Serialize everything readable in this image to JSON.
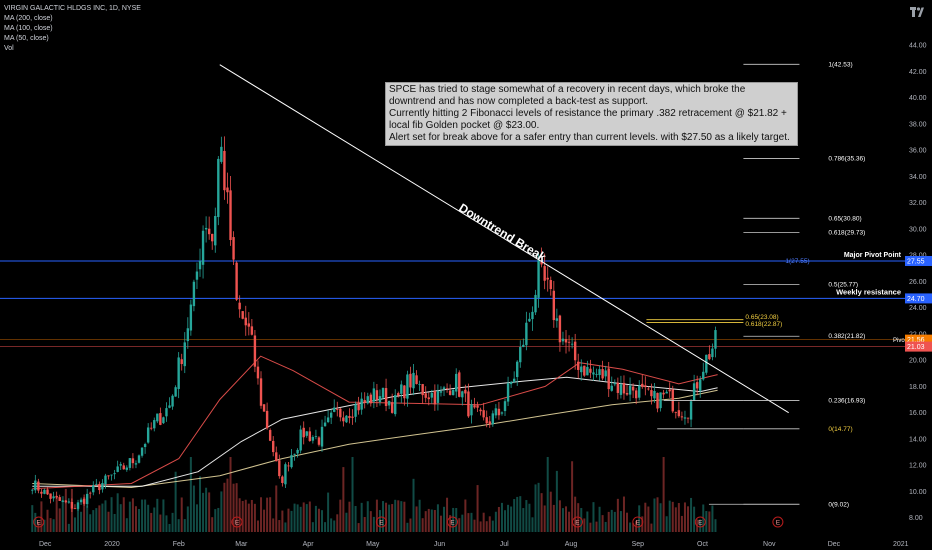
{
  "header": {
    "title": "VIRGIN GALACTIC HLDGS INC, 1D, NYSE",
    "indicators": [
      "MA (200, close)",
      "MA (100, close)",
      "MA (50, close)",
      "Vol"
    ]
  },
  "annotation": {
    "lines": [
      "SPCE has tried to stage somewhat of a recovery in recent days, which broke the downtrend and has now completed a  back-test as support.",
      "Currently hitting 2 Fibonacci levels of resistance the primary .382 retracement @ $21.82 + local fib Golden pocket @ $23.00.",
      "Alert set for break above for a safer entry than current levels. with $27.50 as a likely target."
    ]
  },
  "labels": {
    "downtrend": "Downtrend Break",
    "major_pivot": "Major Pivot Point",
    "weekly_res": "Weekly resistance"
  },
  "colors": {
    "up": "#26a69a",
    "down": "#ef5350",
    "ma200": "#e8d8a0",
    "ma100": "#ffffff",
    "ma50": "#ef5350",
    "pivot_line": "#2962ff",
    "price_badge": "#f57c00",
    "fib_line": "#cccccc",
    "fib_text": "#ffffff",
    "fib_text_gold": "#f5d142"
  },
  "chart_data": {
    "type": "candlestick",
    "y_axis": {
      "min": 8.0,
      "max": 44.0,
      "ticks": [
        "44.00",
        "42.00",
        "40.00",
        "38.00",
        "36.00",
        "34.00",
        "32.00",
        "30.00",
        "28.00",
        "26.00",
        "24.00",
        "22.00",
        "20.00",
        "18.00",
        "16.00",
        "14.00",
        "12.00",
        "10.00",
        "8.00"
      ]
    },
    "x_axis": {
      "labels": [
        "Dec",
        "2020",
        "Feb",
        "Mar",
        "Apr",
        "May",
        "Jun",
        "Jul",
        "Aug",
        "Sep",
        "Oct",
        "Nov",
        "Dec",
        "2021"
      ]
    },
    "price_path": [
      [
        "2019-11-25",
        10.6
      ],
      [
        "2019-12-05",
        9.4
      ],
      [
        "2019-12-15",
        8.8
      ],
      [
        "2019-12-24",
        10.2
      ],
      [
        "2020-01-03",
        11.4
      ],
      [
        "2020-01-12",
        12.5
      ],
      [
        "2020-01-20",
        15.0
      ],
      [
        "2020-01-28",
        16.6
      ],
      [
        "2020-02-03",
        21.0
      ],
      [
        "2020-02-08",
        25.0
      ],
      [
        "2020-02-13",
        31.0
      ],
      [
        "2020-02-17",
        29.0
      ],
      [
        "2020-02-20",
        37.0
      ],
      [
        "2020-02-24",
        31.0
      ],
      [
        "2020-02-28",
        24.0
      ],
      [
        "2020-03-05",
        22.0
      ],
      [
        "2020-03-10",
        17.0
      ],
      [
        "2020-03-16",
        13.0
      ],
      [
        "2020-03-19",
        10.5
      ],
      [
        "2020-03-23",
        12.5
      ],
      [
        "2020-03-30",
        14.5
      ],
      [
        "2020-04-06",
        14.0
      ],
      [
        "2020-04-13",
        15.8
      ],
      [
        "2020-04-20",
        16.2
      ],
      [
        "2020-04-27",
        16.8
      ],
      [
        "2020-05-04",
        17.5
      ],
      [
        "2020-05-11",
        16.6
      ],
      [
        "2020-05-18",
        18.5
      ],
      [
        "2020-05-25",
        17.6
      ],
      [
        "2020-06-01",
        17.2
      ],
      [
        "2020-06-08",
        18.5
      ],
      [
        "2020-06-15",
        16.2
      ],
      [
        "2020-06-22",
        15.2
      ],
      [
        "2020-06-29",
        16.0
      ],
      [
        "2020-07-06",
        19.0
      ],
      [
        "2020-07-13",
        23.5
      ],
      [
        "2020-07-17",
        26.5
      ],
      [
        "2020-07-21",
        25.4
      ],
      [
        "2020-07-27",
        22.0
      ],
      [
        "2020-08-03",
        20.0
      ],
      [
        "2020-08-10",
        19.0
      ],
      [
        "2020-08-17",
        18.8
      ],
      [
        "2020-08-24",
        17.8
      ],
      [
        "2020-08-31",
        17.8
      ],
      [
        "2020-09-08",
        16.9
      ],
      [
        "2020-09-14",
        17.3
      ],
      [
        "2020-09-21",
        16.2
      ],
      [
        "2020-09-25",
        16.3
      ],
      [
        "2020-09-30",
        19.2
      ],
      [
        "2020-10-05",
        20.8
      ],
      [
        "2020-10-08",
        21.6
      ]
    ],
    "moving_averages": [
      {
        "name": "MA (200, close)",
        "points": [
          [
            "2019-11-25",
            10.6
          ],
          [
            "2020-01-10",
            10.3
          ],
          [
            "2020-02-20",
            11.2
          ],
          [
            "2020-03-20",
            12.5
          ],
          [
            "2020-04-20",
            13.6
          ],
          [
            "2020-05-20",
            14.3
          ],
          [
            "2020-06-20",
            15.0
          ],
          [
            "2020-07-20",
            15.8
          ],
          [
            "2020-08-20",
            16.6
          ],
          [
            "2020-09-20",
            17.1
          ],
          [
            "2020-10-08",
            17.7
          ]
        ]
      },
      {
        "name": "MA (100, close)",
        "points": [
          [
            "2019-11-25",
            10.4
          ],
          [
            "2020-01-15",
            10.4
          ],
          [
            "2020-02-10",
            11.5
          ],
          [
            "2020-03-01",
            13.8
          ],
          [
            "2020-03-20",
            15.5
          ],
          [
            "2020-04-10",
            16.2
          ],
          [
            "2020-05-10",
            17.2
          ],
          [
            "2020-06-10",
            17.9
          ],
          [
            "2020-07-10",
            18.4
          ],
          [
            "2020-07-30",
            18.7
          ],
          [
            "2020-08-30",
            18.1
          ],
          [
            "2020-09-30",
            17.6
          ],
          [
            "2020-10-08",
            17.9
          ]
        ]
      },
      {
        "name": "MA (50, close)",
        "points": [
          [
            "2019-11-25",
            10.2
          ],
          [
            "2020-01-10",
            10.6
          ],
          [
            "2020-02-01",
            12.5
          ],
          [
            "2020-02-20",
            17.0
          ],
          [
            "2020-03-10",
            20.3
          ],
          [
            "2020-03-25",
            19.2
          ],
          [
            "2020-04-20",
            16.8
          ],
          [
            "2020-05-20",
            16.7
          ],
          [
            "2020-06-20",
            16.6
          ],
          [
            "2020-07-20",
            18.0
          ],
          [
            "2020-08-05",
            19.8
          ],
          [
            "2020-08-25",
            19.3
          ],
          [
            "2020-09-20",
            18.2
          ],
          [
            "2020-10-08",
            18.9
          ]
        ]
      }
    ],
    "fib_levels": [
      {
        "label": "1(42.53)",
        "value": 42.53,
        "x_from": "2020-10-20",
        "x_to": "2020-11-15"
      },
      {
        "label": "0.786(35.36)",
        "value": 35.36,
        "x_from": "2020-10-20",
        "x_to": "2020-11-15"
      },
      {
        "label": "0.65(30.80)",
        "value": 30.8,
        "x_from": "2020-10-20",
        "x_to": "2020-11-15"
      },
      {
        "label": "0.618(29.73)",
        "value": 29.73,
        "x_from": "2020-10-20",
        "x_to": "2020-11-15"
      },
      {
        "label": "0.5(25.77)",
        "value": 25.77,
        "x_from": "2020-10-20",
        "x_to": "2020-11-15"
      },
      {
        "label": "0.382(21.82)",
        "value": 21.82,
        "x_from": "2020-10-20",
        "x_to": "2020-11-15"
      },
      {
        "label": "0.236(16.93)",
        "value": 16.93,
        "x_from": "2020-10-20",
        "x_to": "2020-11-15"
      },
      {
        "label": "0(14.77)",
        "value": 14.77,
        "x_from": "2020-10-20",
        "x_to": "2020-11-15"
      },
      {
        "label": "0(9.02)",
        "value": 9.02,
        "x_from": "2020-10-20",
        "x_to": "2020-11-15"
      }
    ],
    "local_fib_levels": [
      {
        "label": "0.65(23.08)",
        "value": 23.08
      },
      {
        "label": "0.618(22.87)",
        "value": 22.87
      },
      {
        "label": "1(27.55)",
        "value": 27.55
      }
    ],
    "horizontal_lines": [
      {
        "name": "Major Pivot Point",
        "value": 27.55,
        "badge": "27.55"
      },
      {
        "name": "Weekly resistance",
        "value": 24.7,
        "badge": "24.70"
      }
    ],
    "price_badges": [
      {
        "label": "Pivo",
        "value": 21.56,
        "text": "21.56"
      },
      {
        "label": "",
        "value": 21.03,
        "text": "21.03"
      }
    ],
    "downtrend_line": {
      "from": [
        "2020-02-20",
        42.5
      ],
      "to": [
        "2020-11-10",
        16.0
      ]
    },
    "earnings_markers": [
      "E",
      "E",
      "E",
      "E",
      "E",
      "E",
      "E",
      "E",
      "E"
    ]
  }
}
